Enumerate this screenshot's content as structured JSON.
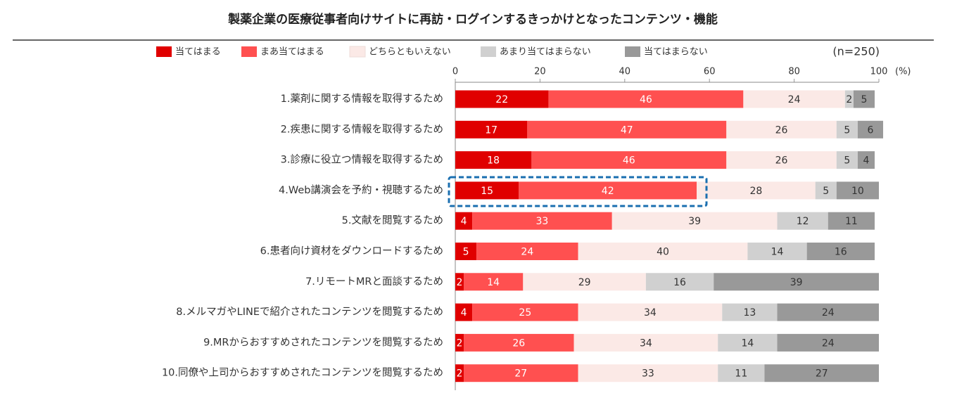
{
  "chart_data": {
    "type": "stacked-bar-horizontal",
    "title": "製薬企業の医療従事者向けサイトに再訪・ログインするきっかけとなったコンテンツ・機能",
    "note": "(n=250)",
    "unit": "(%)",
    "categories": [
      "1.薬剤に関する情報を取得するため",
      "2.疾患に関する情報を取得するため",
      "3.診療に役立つ情報を取得するため",
      "4.Web講演会を予約・視聴するため",
      "5.文献を閲覧するため",
      "6.患者向け資材をダウンロードするため",
      "7.リモートMRと面談するため",
      "8.メルマガやLINEで紹介されたコンテンツを閲覧するため",
      "9.MRからおすすめされたコンテンツを閲覧するため",
      "10.同僚や上司からおすすめされたコンテンツを閲覧するため"
    ],
    "series": [
      {
        "name": "当てはまる",
        "color": "#e00000",
        "values": [
          22,
          17,
          18,
          15,
          4,
          5,
          2,
          4,
          2,
          2
        ]
      },
      {
        "name": "まあ当てはまる",
        "color": "#ff5050",
        "values": [
          46,
          47,
          46,
          42,
          33,
          24,
          14,
          25,
          26,
          27
        ]
      },
      {
        "name": "どちらともいえない",
        "color": "#fbe9e6",
        "values": [
          24,
          26,
          26,
          28,
          39,
          40,
          29,
          34,
          34,
          33
        ]
      },
      {
        "name": "あまり当てはまらない",
        "color": "#d0d0d0",
        "values": [
          2,
          5,
          5,
          5,
          12,
          14,
          16,
          13,
          14,
          11
        ]
      },
      {
        "name": "当てはまらない",
        "color": "#999999",
        "values": [
          5,
          6,
          4,
          10,
          11,
          16,
          39,
          24,
          24,
          27
        ]
      }
    ],
    "xlim": [
      0,
      100
    ],
    "xticks": [
      0,
      20,
      40,
      60,
      80,
      100
    ],
    "legend": "top"
  }
}
